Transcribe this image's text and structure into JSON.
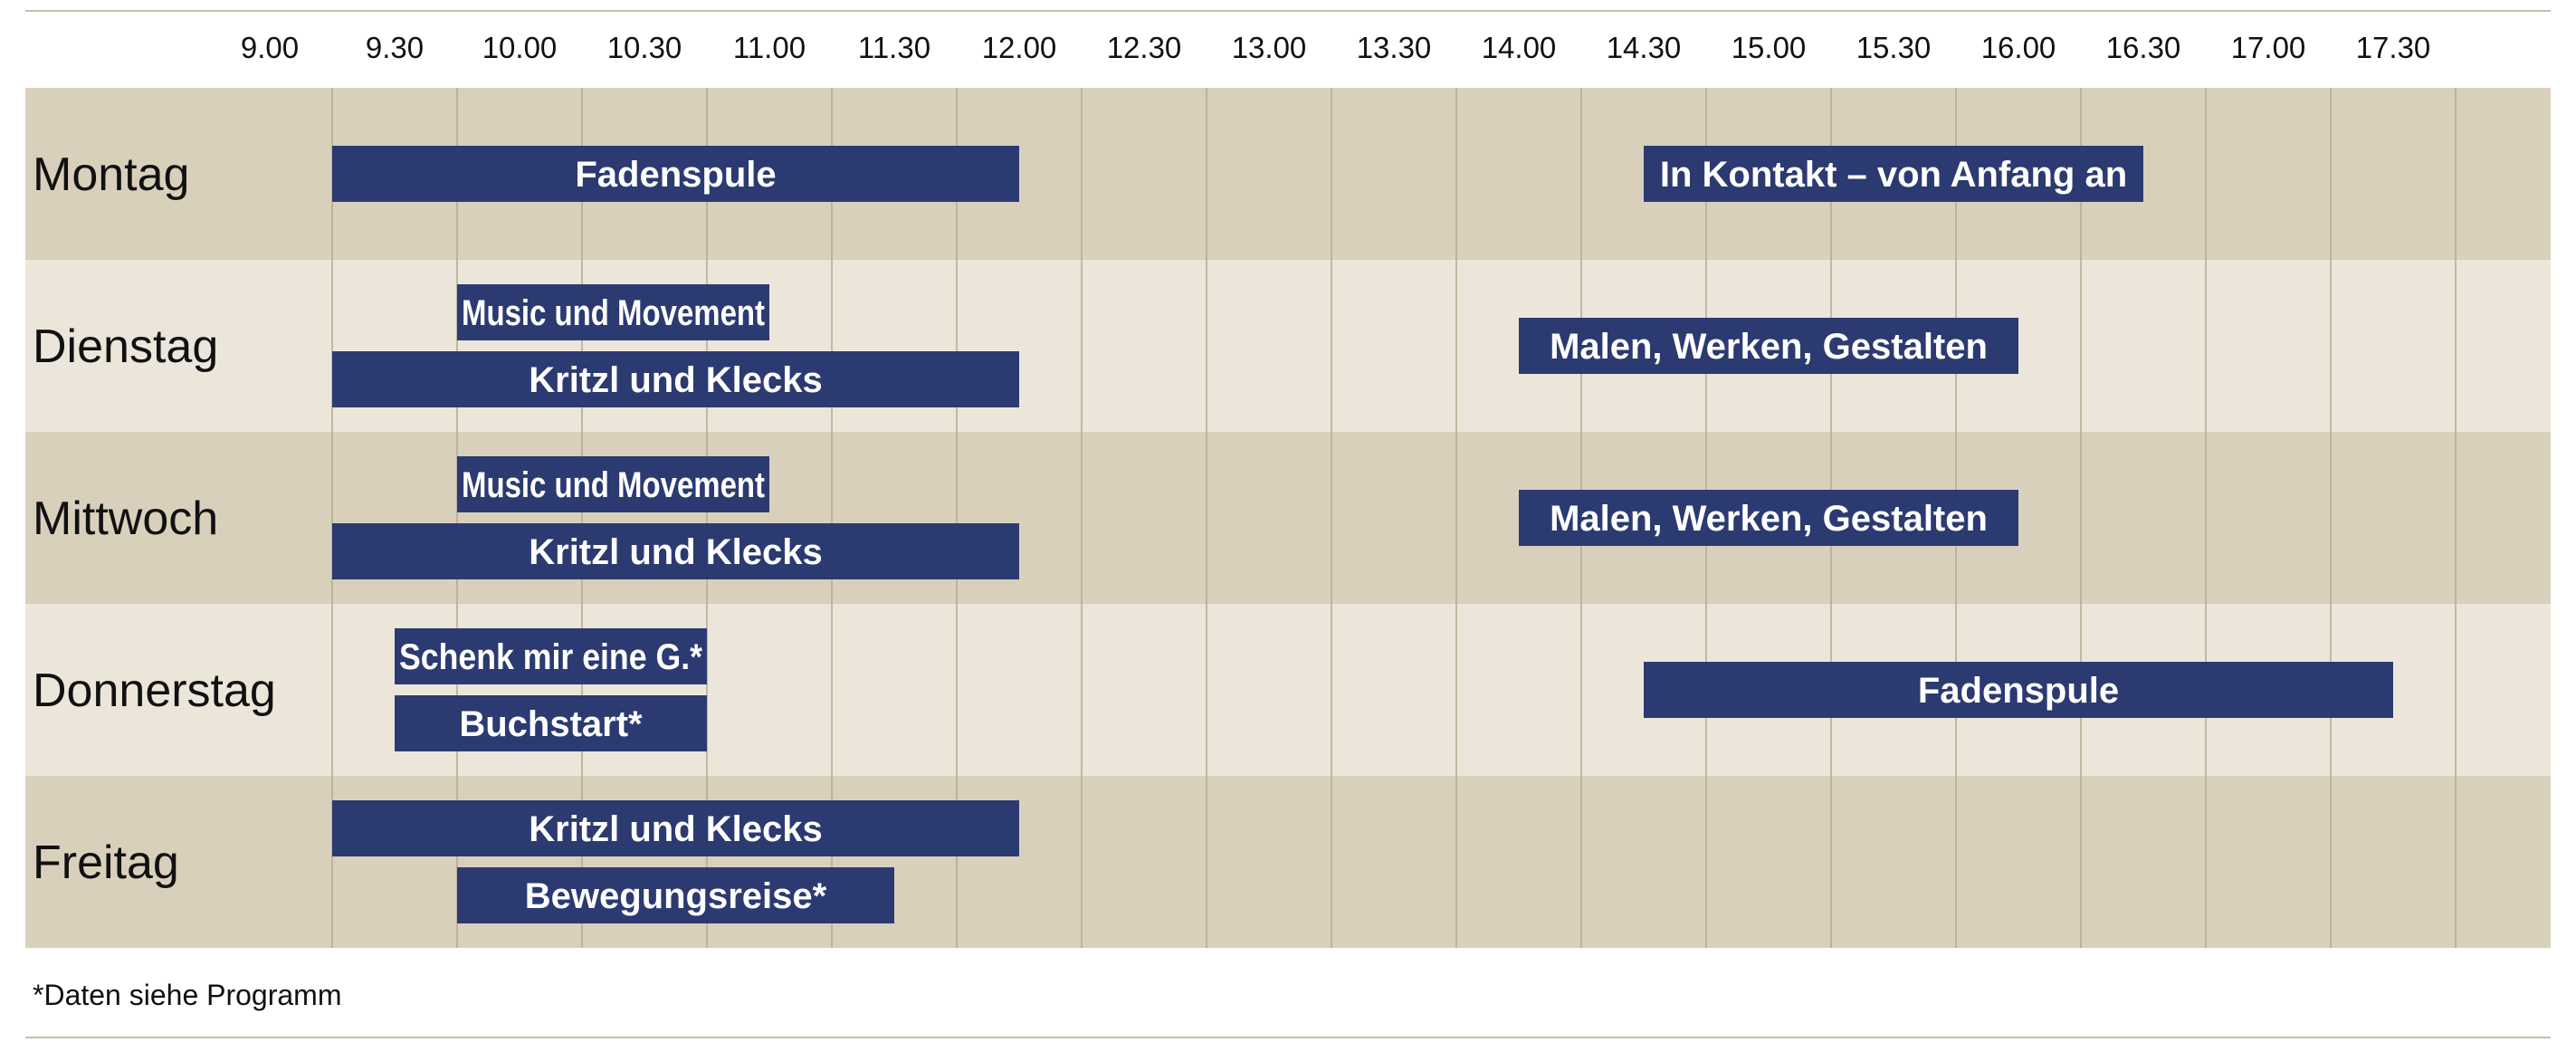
{
  "chart_data": {
    "type": "gantt",
    "time_ticks": [
      "9.00",
      "9.30",
      "10.00",
      "10.30",
      "11.00",
      "11.30",
      "12.00",
      "12.30",
      "13.00",
      "13.30",
      "14.00",
      "14.30",
      "15.00",
      "15.30",
      "16.00",
      "16.30",
      "17.00",
      "17.30"
    ],
    "days": [
      "Montag",
      "Dienstag",
      "Mittwoch",
      "Donnerstag",
      "Freitag"
    ],
    "events": [
      {
        "day": "Montag",
        "label": "Fadenspule",
        "start": "9.15",
        "end": "12.00"
      },
      {
        "day": "Montag",
        "label": "In Kontakt – von Anfang an",
        "start": "14.30",
        "end": "16.30"
      },
      {
        "day": "Dienstag",
        "label": "Music und Movement",
        "start": "9.45",
        "end": "11.00"
      },
      {
        "day": "Dienstag",
        "label": "Kritzl und Klecks",
        "start": "9.15",
        "end": "12.00"
      },
      {
        "day": "Dienstag",
        "label": "Malen, Werken, Gestalten",
        "start": "14.00",
        "end": "16.00"
      },
      {
        "day": "Mittwoch",
        "label": "Music und Movement",
        "start": "9.45",
        "end": "11.00"
      },
      {
        "day": "Mittwoch",
        "label": "Kritzl und Klecks",
        "start": "9.15",
        "end": "12.00"
      },
      {
        "day": "Mittwoch",
        "label": "Malen, Werken, Gestalten",
        "start": "14.00",
        "end": "16.00"
      },
      {
        "day": "Donnerstag",
        "label": "Schenk mir eine G.*",
        "start": "9.30",
        "end": "10.45"
      },
      {
        "day": "Donnerstag",
        "label": "Buchstart*",
        "start": "9.30",
        "end": "10.45"
      },
      {
        "day": "Donnerstag",
        "label": "Fadenspule",
        "start": "14.30",
        "end": "17.30"
      },
      {
        "day": "Freitag",
        "label": "Kritzl und Klecks",
        "start": "9.15",
        "end": "12.00"
      },
      {
        "day": "Freitag",
        "label": "Bewegungsreise*",
        "start": "9.45",
        "end": "11.30"
      }
    ],
    "colors": {
      "bar": "#2c3a72",
      "row_dark": "#d9d0bc",
      "row_light": "#ece6da",
      "gridline": "#b4a98e"
    }
  },
  "footnote": "*Daten siehe Programm"
}
